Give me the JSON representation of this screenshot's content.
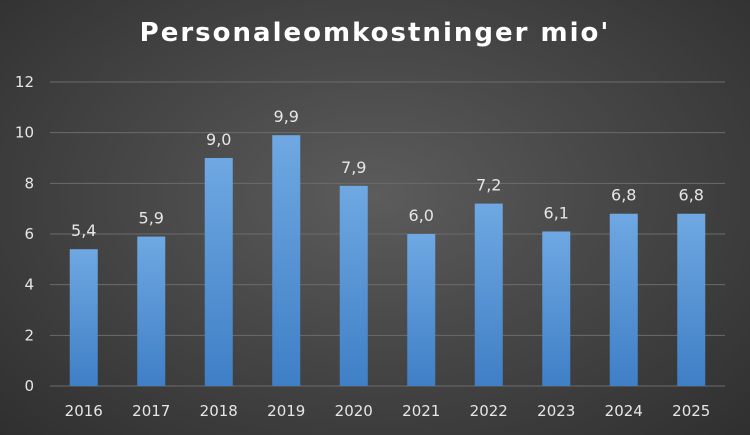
{
  "chart_data": {
    "type": "bar",
    "title": "Personaleomkostninger mio'",
    "categories": [
      "2016",
      "2017",
      "2018",
      "2019",
      "2020",
      "2021",
      "2022",
      "2023",
      "2024",
      "2025"
    ],
    "values": [
      5.4,
      5.9,
      9.0,
      9.9,
      7.9,
      6.0,
      7.2,
      6.1,
      6.8,
      6.8
    ],
    "value_labels": [
      "5,4",
      "5,9",
      "9,0",
      "9,9",
      "7,9",
      "6,0",
      "7,2",
      "6,1",
      "6,8",
      "6,8"
    ],
    "ylim": [
      0,
      12
    ],
    "yticks": [
      "0",
      "2",
      "4",
      "6",
      "8",
      "10",
      "12"
    ],
    "ytick_values": [
      0,
      2,
      4,
      6,
      8,
      10,
      12
    ],
    "grid": true,
    "legend": "none",
    "colors": {
      "bar_top": "#6fa8e2",
      "bar_bottom": "#3f7fc6",
      "grid": "#6b6b6b",
      "text": "#e6e6e6"
    }
  }
}
